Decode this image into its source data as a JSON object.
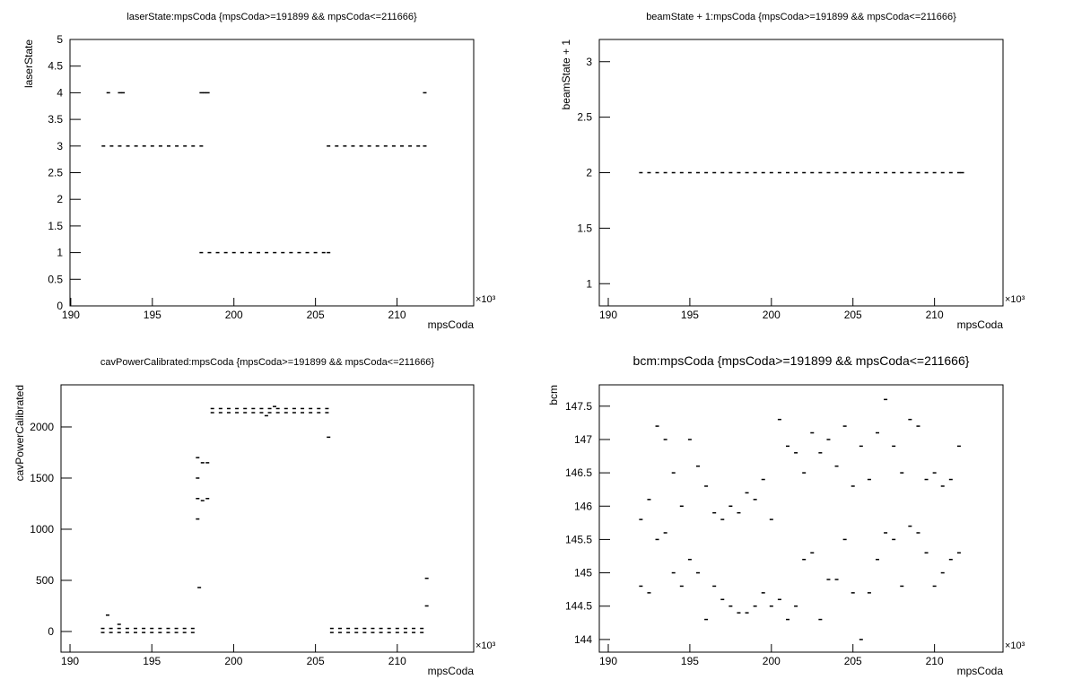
{
  "chart_data": [
    {
      "type": "scatter",
      "title": "laserState:mpsCoda {mpsCoda>=191899 && mpsCoda<=211666}",
      "x_label": "mpsCoda",
      "y_label": "laserState",
      "x_exponent": "×10³",
      "color": "#000000",
      "xlim": [
        189.95,
        214.7
      ],
      "xticks": [
        190,
        195,
        200,
        205,
        210
      ],
      "ylim": [
        0,
        5
      ],
      "yticks": [
        0,
        0.5,
        1,
        1.5,
        2,
        2.5,
        3,
        3.5,
        4,
        4.5,
        5
      ],
      "x": [
        192,
        192.5,
        193,
        193.5,
        194,
        194.5,
        195,
        195.5,
        196,
        196.5,
        197,
        197.5,
        198,
        205.8,
        206.3,
        206.8,
        207.3,
        207.8,
        208.3,
        208.8,
        209.3,
        209.8,
        210.3,
        210.8,
        211.3,
        211.7,
        198,
        198.5,
        199,
        199.5,
        200,
        200.5,
        201,
        201.5,
        202,
        202.5,
        203,
        203.5,
        204,
        204.5,
        205,
        205.5,
        205.8,
        192.3,
        193,
        193.2,
        198,
        198.2,
        198.4,
        211.7
      ],
      "values": [
        3,
        3,
        3,
        3,
        3,
        3,
        3,
        3,
        3,
        3,
        3,
        3,
        3,
        3,
        3,
        3,
        3,
        3,
        3,
        3,
        3,
        3,
        3,
        3,
        3,
        3,
        1,
        1,
        1,
        1,
        1,
        1,
        1,
        1,
        1,
        1,
        1,
        1,
        1,
        1,
        1,
        1,
        1,
        4,
        4,
        4,
        4,
        4,
        4,
        4
      ]
    },
    {
      "type": "scatter",
      "title": "beamState + 1:mpsCoda {mpsCoda>=191899 && mpsCoda<=211666}",
      "x_label": "mpsCoda",
      "y_label": "beamState + 1",
      "x_exponent": "×10³",
      "color": "#000000",
      "xlim": [
        189.45,
        214.2
      ],
      "xticks": [
        190,
        195,
        200,
        205,
        210
      ],
      "ylim": [
        0.8,
        3.2
      ],
      "yticks": [
        1,
        1.5,
        2,
        2.5,
        3
      ],
      "x": [
        192,
        192.5,
        193,
        193.5,
        194,
        194.5,
        195,
        195.5,
        196,
        196.5,
        197,
        197.5,
        198,
        198.5,
        199,
        199.5,
        200,
        200.5,
        201,
        201.5,
        202,
        202.5,
        203,
        203.5,
        204,
        204.5,
        205,
        205.5,
        206,
        206.5,
        207,
        207.5,
        208,
        208.5,
        209,
        209.5,
        210,
        210.5,
        211,
        211.5,
        211.7
      ],
      "values": [
        2,
        2,
        2,
        2,
        2,
        2,
        2,
        2,
        2,
        2,
        2,
        2,
        2,
        2,
        2,
        2,
        2,
        2,
        2,
        2,
        2,
        2,
        2,
        2,
        2,
        2,
        2,
        2,
        2,
        2,
        2,
        2,
        2,
        2,
        2,
        2,
        2,
        2,
        2,
        2,
        2
      ]
    },
    {
      "type": "scatter",
      "title": "cavPowerCalibrated:mpsCoda {mpsCoda>=191899 && mpsCoda<=211666}",
      "x_label": "mpsCoda",
      "y_label": "cavPowerCalibrated",
      "x_exponent": "×10³",
      "color": "#000000",
      "xlim": [
        189.45,
        214.67
      ],
      "xticks": [
        190,
        195,
        200,
        205,
        210
      ],
      "ylim": [
        -202,
        2412
      ],
      "yticks": [
        0,
        500,
        1000,
        1500,
        2000
      ],
      "x": [
        192,
        192.5,
        193,
        193.5,
        194,
        194.5,
        195,
        195.5,
        196,
        196.5,
        197,
        197.5,
        192,
        192.5,
        193,
        193.5,
        194,
        194.5,
        195,
        195.5,
        196,
        196.5,
        197,
        197.5,
        206,
        206.5,
        207,
        207.5,
        208,
        208.5,
        209,
        209.5,
        210,
        210.5,
        211,
        211.5,
        206,
        206.5,
        207,
        207.5,
        208,
        208.5,
        209,
        209.5,
        210,
        210.5,
        211,
        211.5,
        198.7,
        199.2,
        199.7,
        200.2,
        200.7,
        201.2,
        201.7,
        202.2,
        202.7,
        203.2,
        203.7,
        204.2,
        204.7,
        205.2,
        205.7,
        198.7,
        199.2,
        199.7,
        200.2,
        200.7,
        201.2,
        201.7,
        202.2,
        202.7,
        203.2,
        203.7,
        204.2,
        204.7,
        205.2,
        205.7,
        197.8,
        197.8,
        197.8,
        198.1,
        198.1,
        198.4,
        198.4,
        197.8,
        197.9,
        205.8,
        211.8,
        211.8,
        202.5,
        202,
        192.3,
        193
      ],
      "values": [
        30,
        30,
        30,
        30,
        30,
        30,
        30,
        30,
        30,
        30,
        30,
        30,
        -10,
        -10,
        -10,
        -10,
        -10,
        -10,
        -10,
        -10,
        -10,
        -10,
        -10,
        -10,
        30,
        30,
        30,
        30,
        30,
        30,
        30,
        30,
        30,
        30,
        30,
        30,
        -10,
        -10,
        -10,
        -10,
        -10,
        -10,
        -10,
        -10,
        -10,
        -10,
        -10,
        -10,
        2180,
        2180,
        2180,
        2180,
        2180,
        2180,
        2180,
        2180,
        2180,
        2180,
        2180,
        2180,
        2180,
        2180,
        2180,
        2140,
        2140,
        2140,
        2140,
        2140,
        2140,
        2140,
        2140,
        2140,
        2140,
        2140,
        2140,
        2140,
        2140,
        2140,
        1700,
        1300,
        1500,
        1650,
        1280,
        1650,
        1300,
        1100,
        430,
        1900,
        520,
        250,
        2200,
        2110,
        160,
        70
      ]
    },
    {
      "type": "scatter",
      "title": "bcm:mpsCoda {mpsCoda>=191899 && mpsCoda<=211666}",
      "x_label": "mpsCoda",
      "y_label": "bcm",
      "x_exponent": "×10³",
      "color": "#000000",
      "xlim": [
        189.45,
        214.2
      ],
      "xticks": [
        190,
        195,
        200,
        205,
        210
      ],
      "ylim": [
        143.81,
        147.82
      ],
      "yticks": [
        144,
        144.5,
        145,
        145.5,
        146,
        146.5,
        147,
        147.5
      ],
      "x": [
        192,
        192.5,
        193,
        193.5,
        194,
        194.5,
        195,
        195.5,
        196,
        196.5,
        197,
        197.5,
        198,
        198.5,
        199,
        199.5,
        200,
        200.5,
        201,
        201.5,
        202,
        202.5,
        203,
        203.5,
        204,
        204.5,
        205,
        205.5,
        206,
        206.5,
        207,
        207.5,
        208,
        208.5,
        209,
        209.5,
        210,
        210.5,
        211,
        211.5,
        192,
        192.5,
        193,
        193.5,
        194,
        194.5,
        195,
        195.5,
        196,
        196.5,
        197,
        197.5,
        198,
        198.5,
        199,
        199.5,
        200,
        200.5,
        201,
        201.5,
        202,
        202.5,
        203,
        203.5,
        204,
        204.5,
        205,
        205.5,
        206,
        206.5,
        207,
        207.5,
        208,
        208.5,
        209,
        209.5,
        210,
        210.5,
        211,
        211.5
      ],
      "values": [
        145.8,
        146.1,
        147.2,
        147.0,
        146.5,
        146.0,
        147.0,
        146.6,
        146.3,
        145.9,
        145.8,
        146.0,
        145.9,
        146.2,
        146.1,
        146.4,
        145.8,
        147.3,
        146.9,
        146.8,
        146.5,
        147.1,
        146.8,
        147.0,
        146.6,
        147.2,
        146.3,
        146.9,
        146.4,
        147.1,
        147.6,
        146.9,
        146.5,
        147.3,
        147.2,
        146.4,
        146.5,
        146.3,
        146.4,
        146.9,
        144.8,
        144.7,
        145.5,
        145.6,
        145.0,
        144.8,
        145.2,
        145.0,
        144.3,
        144.8,
        144.6,
        144.5,
        144.4,
        144.4,
        144.5,
        144.7,
        144.5,
        144.6,
        144.3,
        144.5,
        145.2,
        145.3,
        144.3,
        144.9,
        144.9,
        145.5,
        144.7,
        144.0,
        144.7,
        145.2,
        145.6,
        145.5,
        144.8,
        145.7,
        145.6,
        145.3,
        144.8,
        145.0,
        145.2,
        145.3
      ]
    }
  ]
}
